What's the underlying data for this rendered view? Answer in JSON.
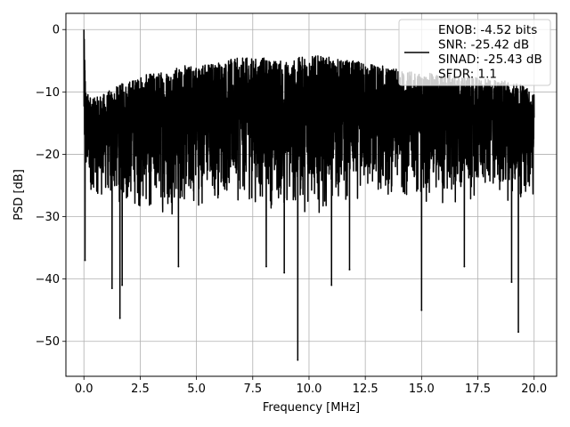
{
  "chart_data": {
    "type": "line",
    "title": "",
    "xlabel": "Frequency [MHz]",
    "ylabel": "PSD [dB]",
    "xlim": [
      -0.8,
      21.0
    ],
    "ylim": [
      -55.6,
      2.6
    ],
    "x_ticks": [
      0.0,
      2.5,
      5.0,
      7.5,
      10.0,
      12.5,
      15.0,
      17.5,
      20.0
    ],
    "x_tick_labels": [
      "0.0",
      "2.5",
      "5.0",
      "7.5",
      "10.0",
      "12.5",
      "15.0",
      "17.5",
      "20.0"
    ],
    "y_ticks": [
      0,
      -10,
      -20,
      -30,
      -40,
      -50
    ],
    "y_tick_labels": [
      "0",
      "−10",
      "−20",
      "−30",
      "−40",
      "−50"
    ],
    "grid": true,
    "legend_position": "top-right",
    "legend_lines": [
      "ENOB: -4.52 bits",
      "SNR: -25.42 dB",
      "SINAD: -25.43 dB",
      "SFDR: 1.1"
    ],
    "line_color": "#000000",
    "series": [
      {
        "name": "ENOB: -4.52 bits\nSNR: -25.42 dB\nSINAD: -25.43 dB\nSFDR: 1.1",
        "x_range": [
          0,
          20
        ],
        "envelope": {
          "x": [
            0,
            0.1,
            0.5,
            1,
            2,
            3,
            4,
            5,
            6,
            7,
            8,
            9,
            10,
            11,
            12,
            13,
            14,
            15,
            16,
            17,
            18,
            19,
            20
          ],
          "upper": [
            0,
            -10,
            -11,
            -10,
            -8,
            -7,
            -6,
            -5.5,
            -5,
            -4.5,
            -4.5,
            -5,
            -4,
            -4.5,
            -5,
            -5.5,
            -6.5,
            -7,
            -7,
            -7.5,
            -8,
            -8,
            -10
          ],
          "typical_low": [
            -25,
            -26,
            -27,
            -28,
            -29,
            -30,
            -30,
            -29,
            -28,
            -28,
            -29,
            -30,
            -30,
            -29,
            -28,
            -28,
            -27,
            -28,
            -29,
            -28,
            -27,
            -28,
            -27
          ]
        },
        "deep_dips": [
          {
            "x": 0.05,
            "y": -37
          },
          {
            "x": 1.25,
            "y": -41.5
          },
          {
            "x": 1.6,
            "y": -46.3
          },
          {
            "x": 1.7,
            "y": -41
          },
          {
            "x": 4.2,
            "y": -38
          },
          {
            "x": 8.1,
            "y": -38
          },
          {
            "x": 8.9,
            "y": -39
          },
          {
            "x": 9.5,
            "y": -53
          },
          {
            "x": 11.0,
            "y": -41
          },
          {
            "x": 11.8,
            "y": -38.5
          },
          {
            "x": 15.0,
            "y": -45
          },
          {
            "x": 16.9,
            "y": -38
          },
          {
            "x": 19.0,
            "y": -40.5
          },
          {
            "x": 19.3,
            "y": -48.5
          }
        ]
      }
    ]
  }
}
